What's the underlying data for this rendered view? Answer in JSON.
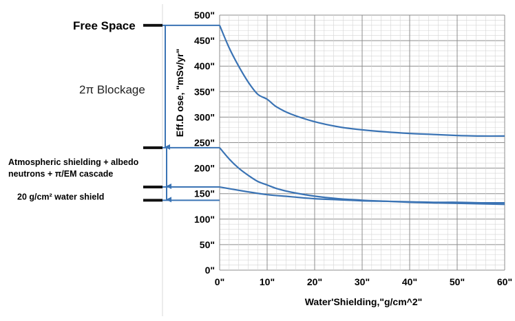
{
  "chart_data": {
    "type": "line",
    "xlabel": "Water'Shielding,\"g/cm^2\"",
    "ylabel": "Eff.D ose, \"mSv/yr\"",
    "xlim": [
      0,
      60
    ],
    "ylim": [
      0,
      500
    ],
    "x_ticks": [
      "0\"",
      "10\"",
      "20\"",
      "30\"",
      "40\"",
      "50\"",
      "60\""
    ],
    "y_ticks": [
      "0\"",
      "50\"",
      "100\"",
      "150\"",
      "200\"",
      "250\"",
      "300\"",
      "350\"",
      "400\"",
      "450\"",
      "500\""
    ],
    "grid": true,
    "series": [
      {
        "color": "#3a73b4",
        "x": [
          0,
          2,
          4,
          6,
          8,
          10,
          12,
          15,
          20,
          25,
          30,
          35,
          40,
          45,
          50,
          55,
          60
        ],
        "y": [
          480,
          436,
          400,
          369,
          345,
          335,
          320,
          306,
          291,
          281,
          275,
          271,
          268,
          266,
          264,
          263,
          263
        ]
      },
      {
        "color": "#3a73b4",
        "x": [
          0,
          2,
          4,
          6,
          8,
          10,
          12,
          15,
          20,
          25,
          30,
          35,
          40,
          45,
          50,
          55,
          60
        ],
        "y": [
          240,
          218,
          200,
          186,
          174,
          167,
          160,
          153,
          145,
          140,
          137,
          135,
          133,
          132,
          131,
          130,
          129
        ]
      },
      {
        "color": "#3a73b4",
        "x": [
          0,
          5,
          10,
          15,
          20,
          25,
          30,
          35,
          40,
          45,
          50,
          55,
          60
        ],
        "y": [
          163,
          155,
          148,
          144,
          140,
          138,
          136,
          135,
          134,
          133,
          133,
          132,
          132
        ]
      }
    ],
    "annotations": {
      "free_space": "Free Space",
      "blockage": "2π Blockage",
      "atmos_line1": "Atmospheric shielding + albedo",
      "atmos_line2": "neutrons + π/EM cascade",
      "water_shield": "20 g/cm² water shield"
    },
    "reference_levels": {
      "free_space": 480,
      "blockage": 240,
      "atmospheric": 163,
      "water_shield": 137
    }
  }
}
